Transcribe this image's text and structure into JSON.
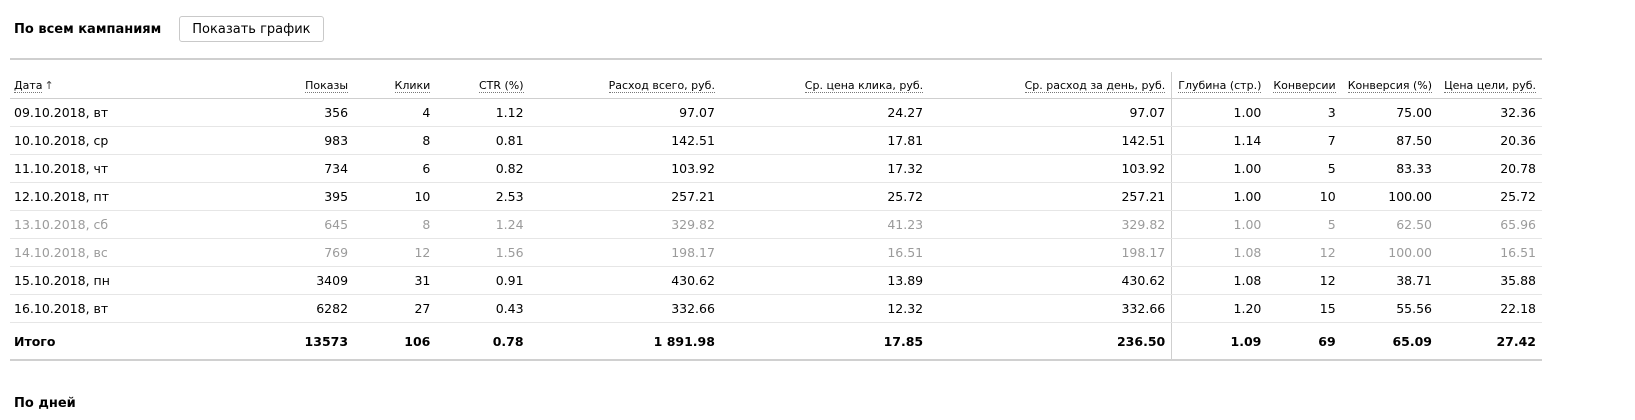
{
  "header": {
    "title": "По всем кампаниям",
    "chart_button": "Показать график"
  },
  "table": {
    "columns": [
      {
        "key": "date",
        "label": "Дата",
        "sort_arrow": "↑"
      },
      {
        "key": "shows",
        "label": "Показы"
      },
      {
        "key": "clicks",
        "label": "Клики"
      },
      {
        "key": "ctr",
        "label": "CTR (%)"
      },
      {
        "key": "spend",
        "label": "Расход всего, руб."
      },
      {
        "key": "cpc",
        "label": "Ср. цена клика, руб."
      },
      {
        "key": "daily",
        "label": "Ср. расход за день, руб."
      },
      {
        "key": "depth",
        "label": "Глубина (стр.)"
      },
      {
        "key": "conv",
        "label": "Конверсии"
      },
      {
        "key": "conv_rate",
        "label": "Конверсия (%)"
      },
      {
        "key": "goal_price",
        "label": "Цена цели, руб."
      }
    ],
    "rows": [
      {
        "date": "09.10.2018, вт",
        "shows": "356",
        "clicks": "4",
        "ctr": "1.12",
        "spend": "97.07",
        "cpc": "24.27",
        "daily": "97.07",
        "depth": "1.00",
        "conv": "3",
        "conv_rate": "75.00",
        "goal_price": "32.36",
        "weekend": false
      },
      {
        "date": "10.10.2018, ср",
        "shows": "983",
        "clicks": "8",
        "ctr": "0.81",
        "spend": "142.51",
        "cpc": "17.81",
        "daily": "142.51",
        "depth": "1.14",
        "conv": "7",
        "conv_rate": "87.50",
        "goal_price": "20.36",
        "weekend": false
      },
      {
        "date": "11.10.2018, чт",
        "shows": "734",
        "clicks": "6",
        "ctr": "0.82",
        "spend": "103.92",
        "cpc": "17.32",
        "daily": "103.92",
        "depth": "1.00",
        "conv": "5",
        "conv_rate": "83.33",
        "goal_price": "20.78",
        "weekend": false
      },
      {
        "date": "12.10.2018, пт",
        "shows": "395",
        "clicks": "10",
        "ctr": "2.53",
        "spend": "257.21",
        "cpc": "25.72",
        "daily": "257.21",
        "depth": "1.00",
        "conv": "10",
        "conv_rate": "100.00",
        "goal_price": "25.72",
        "weekend": false
      },
      {
        "date": "13.10.2018, сб",
        "shows": "645",
        "clicks": "8",
        "ctr": "1.24",
        "spend": "329.82",
        "cpc": "41.23",
        "daily": "329.82",
        "depth": "1.00",
        "conv": "5",
        "conv_rate": "62.50",
        "goal_price": "65.96",
        "weekend": true
      },
      {
        "date": "14.10.2018, вс",
        "shows": "769",
        "clicks": "12",
        "ctr": "1.56",
        "spend": "198.17",
        "cpc": "16.51",
        "daily": "198.17",
        "depth": "1.08",
        "conv": "12",
        "conv_rate": "100.00",
        "goal_price": "16.51",
        "weekend": true
      },
      {
        "date": "15.10.2018, пн",
        "shows": "3409",
        "clicks": "31",
        "ctr": "0.91",
        "spend": "430.62",
        "cpc": "13.89",
        "daily": "430.62",
        "depth": "1.08",
        "conv": "12",
        "conv_rate": "38.71",
        "goal_price": "35.88",
        "weekend": false
      },
      {
        "date": "16.10.2018, вт",
        "shows": "6282",
        "clicks": "27",
        "ctr": "0.43",
        "spend": "332.66",
        "cpc": "12.32",
        "daily": "332.66",
        "depth": "1.20",
        "conv": "15",
        "conv_rate": "55.56",
        "goal_price": "22.18",
        "weekend": false
      }
    ],
    "total": {
      "date": "Итого",
      "shows": "13573",
      "clicks": "106",
      "ctr": "0.78",
      "spend": "1 891.98",
      "cpc": "17.85",
      "daily": "236.50",
      "depth": "1.09",
      "conv": "69",
      "conv_rate": "65.09",
      "goal_price": "27.42"
    }
  },
  "below": {
    "title": "По дней"
  },
  "colors": {
    "weekend_text": "#9b9b9b",
    "border": "#cfcfcf"
  }
}
